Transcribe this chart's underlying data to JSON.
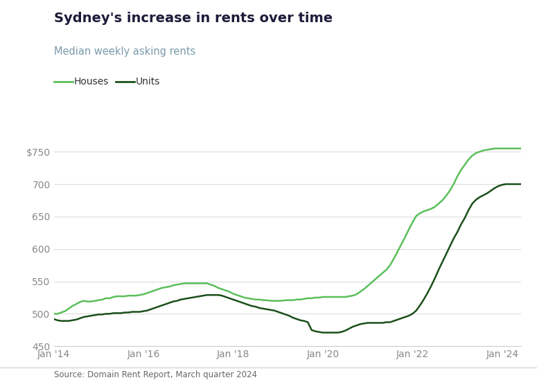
{
  "title": "Sydney's increase in rents over time",
  "subtitle": "Median weekly asking rents",
  "source": "Source: Domain Rent Report, March quarter 2024",
  "title_color": "#1c1c3a",
  "subtitle_color": "#7a9aaa",
  "source_color": "#666666",
  "background_color": "#ffffff",
  "ylim": [
    450,
    762
  ],
  "yticks": [
    450,
    500,
    550,
    600,
    650,
    700,
    750
  ],
  "ytick_labels": [
    "450",
    "500",
    "550",
    "600",
    "650",
    "700",
    "$750"
  ],
  "xtick_labels": [
    "Jan '14",
    "Jan '16",
    "Jan '18",
    "Jan '20",
    "Jan '22",
    "Jan '24"
  ],
  "xtick_positions": [
    0,
    24,
    48,
    72,
    96,
    120
  ],
  "houses_color": "#5abf5a",
  "units_color": "#1a4f1a",
  "houses_data": [
    500,
    500,
    502,
    504,
    508,
    512,
    515,
    518,
    520,
    519,
    519,
    520,
    521,
    522,
    524,
    524,
    526,
    527,
    527,
    527,
    528,
    528,
    528,
    529,
    530,
    532,
    534,
    536,
    538,
    540,
    541,
    542,
    544,
    545,
    546,
    547,
    547,
    547,
    547,
    547,
    547,
    547,
    545,
    543,
    540,
    538,
    536,
    534,
    531,
    529,
    527,
    525,
    524,
    523,
    522,
    522,
    521,
    521,
    520,
    520,
    520,
    520,
    521,
    521,
    521,
    522,
    522,
    523,
    524,
    524,
    525,
    525,
    526,
    526,
    526,
    526,
    526,
    526,
    526,
    527,
    528,
    530,
    534,
    538,
    543,
    548,
    553,
    558,
    563,
    568,
    575,
    585,
    596,
    607,
    618,
    630,
    641,
    651,
    655,
    658,
    660,
    662,
    665,
    670,
    675,
    682,
    690,
    700,
    712,
    722,
    730,
    738,
    744,
    748,
    750,
    752,
    753,
    754,
    755,
    755,
    755,
    755,
    755,
    755,
    755,
    755
  ],
  "units_data": [
    492,
    490,
    489,
    489,
    489,
    490,
    491,
    493,
    495,
    496,
    497,
    498,
    499,
    499,
    500,
    500,
    501,
    501,
    501,
    502,
    502,
    503,
    503,
    503,
    504,
    505,
    507,
    509,
    511,
    513,
    515,
    517,
    519,
    520,
    522,
    523,
    524,
    525,
    526,
    527,
    528,
    529,
    529,
    529,
    529,
    528,
    526,
    524,
    522,
    520,
    518,
    516,
    514,
    512,
    511,
    509,
    508,
    507,
    506,
    505,
    503,
    501,
    499,
    497,
    494,
    492,
    490,
    489,
    487,
    475,
    473,
    472,
    471,
    471,
    471,
    471,
    471,
    472,
    474,
    477,
    480,
    482,
    484,
    485,
    486,
    486,
    486,
    486,
    486,
    487,
    487,
    489,
    491,
    493,
    495,
    497,
    500,
    505,
    513,
    522,
    532,
    543,
    555,
    568,
    580,
    592,
    604,
    616,
    626,
    638,
    648,
    660,
    670,
    676,
    680,
    683,
    686,
    690,
    694,
    697,
    699,
    700,
    700,
    700,
    700,
    700
  ],
  "legend_labels": [
    "Houses",
    "Units"
  ],
  "legend_colors": [
    "#5abf5a",
    "#1a4f1a"
  ]
}
